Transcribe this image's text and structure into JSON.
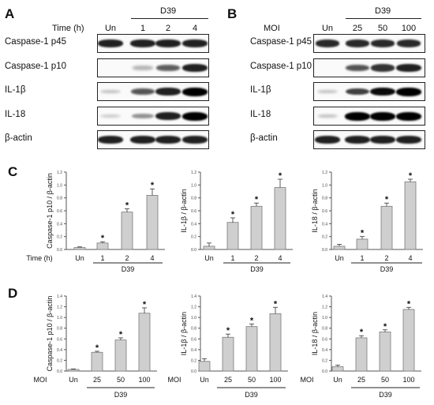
{
  "panels": {
    "A": {
      "letter": "A",
      "header_label": "Time (h)",
      "group_label": "D39",
      "conditions": [
        "Un",
        "1",
        "2",
        "4"
      ],
      "rows": [
        {
          "label": "Caspase-1 p45",
          "intensity": [
            0.85,
            0.85,
            0.85,
            0.85
          ]
        },
        {
          "label": "Caspase-1 p10",
          "intensity": [
            0.0,
            0.15,
            0.55,
            0.85
          ]
        },
        {
          "label": "IL-1β",
          "intensity": [
            0.1,
            0.6,
            0.85,
            1.0
          ]
        },
        {
          "label": "IL-18",
          "intensity": [
            0.05,
            0.3,
            0.85,
            1.0
          ]
        },
        {
          "label": "β-actin",
          "intensity": [
            0.85,
            0.85,
            0.85,
            0.85
          ]
        }
      ]
    },
    "B": {
      "letter": "B",
      "header_label": "MOI",
      "group_label": "D39",
      "conditions": [
        "Un",
        "25",
        "50",
        "100"
      ],
      "rows": [
        {
          "label": "Caspase-1 p45",
          "intensity": [
            0.8,
            0.8,
            0.8,
            0.8
          ]
        },
        {
          "label": "Caspase-1 p10",
          "intensity": [
            0.0,
            0.6,
            0.75,
            0.85
          ]
        },
        {
          "label": "IL-1β",
          "intensity": [
            0.1,
            0.7,
            0.95,
            1.0
          ]
        },
        {
          "label": "IL-18",
          "intensity": [
            0.1,
            1.0,
            1.0,
            1.0
          ]
        },
        {
          "label": "β-actin",
          "intensity": [
            0.85,
            0.85,
            0.85,
            0.85
          ]
        }
      ]
    }
  },
  "chart_data": [
    {
      "panel": "C",
      "type": "bar",
      "xtitle": "Time (h)",
      "group_label": "D39",
      "categories": [
        "Un",
        "1",
        "2",
        "4"
      ],
      "values": [
        0.03,
        0.1,
        0.58,
        0.84
      ],
      "errors": [
        0.01,
        0.02,
        0.05,
        0.1
      ],
      "significant": [
        false,
        true,
        true,
        true
      ],
      "ylabel": "Caspase-1 p10 / β-actin",
      "ylim": [
        0,
        1.2
      ],
      "yticks": [
        "0.0",
        "0.2",
        "0.4",
        "0.6",
        "0.8",
        "1.0",
        "1.2"
      ]
    },
    {
      "panel": "C",
      "type": "bar",
      "xtitle": "",
      "group_label": "D39",
      "categories": [
        "Un",
        "1",
        "2",
        "4"
      ],
      "values": [
        0.05,
        0.42,
        0.67,
        0.96
      ],
      "errors": [
        0.05,
        0.07,
        0.05,
        0.13
      ],
      "significant": [
        false,
        true,
        true,
        true
      ],
      "ylabel": "IL-1β / β-actin",
      "ylim": [
        0,
        1.2
      ],
      "yticks": [
        "0.0",
        "0.2",
        "0.4",
        "0.6",
        "0.8",
        "1.0",
        "1.2"
      ]
    },
    {
      "panel": "C",
      "type": "bar",
      "xtitle": "",
      "group_label": "D39",
      "categories": [
        "Un",
        "1",
        "2",
        "4"
      ],
      "values": [
        0.05,
        0.16,
        0.67,
        1.05
      ],
      "errors": [
        0.03,
        0.04,
        0.05,
        0.04
      ],
      "significant": [
        false,
        true,
        true,
        true
      ],
      "ylabel": "IL-18 / β-actin",
      "ylim": [
        0,
        1.2
      ],
      "yticks": [
        "0.0",
        "0.2",
        "0.4",
        "0.6",
        "0.8",
        "1.0",
        "1.2"
      ]
    },
    {
      "panel": "D",
      "type": "bar",
      "xtitle": "MOI",
      "group_label": "D39",
      "categories": [
        "Un",
        "25",
        "50",
        "100"
      ],
      "values": [
        0.03,
        0.35,
        0.58,
        1.08
      ],
      "errors": [
        0.01,
        0.02,
        0.04,
        0.1
      ],
      "significant": [
        false,
        true,
        true,
        true
      ],
      "ylabel": "Caspase-1 p10 / β-actin",
      "ylim": [
        0,
        1.4
      ],
      "yticks": [
        "0.0",
        "0.2",
        "0.4",
        "0.6",
        "0.8",
        "1.0",
        "1.2",
        "1.4"
      ]
    },
    {
      "panel": "D",
      "type": "bar",
      "xtitle": "MOI",
      "group_label": "D39",
      "categories": [
        "Un",
        "25",
        "50",
        "100"
      ],
      "values": [
        0.18,
        0.63,
        0.83,
        1.07
      ],
      "errors": [
        0.05,
        0.06,
        0.05,
        0.12
      ],
      "significant": [
        false,
        true,
        true,
        true
      ],
      "ylabel": "IL-1β / β-actin",
      "ylim": [
        0,
        1.4
      ],
      "yticks": [
        "0.0",
        "0.2",
        "0.4",
        "0.6",
        "0.8",
        "1.0",
        "1.2",
        "1.4"
      ]
    },
    {
      "panel": "D",
      "type": "bar",
      "xtitle": "MOI",
      "group_label": "D39",
      "categories": [
        "Un",
        "25",
        "50",
        "100"
      ],
      "values": [
        0.08,
        0.62,
        0.73,
        1.15
      ],
      "errors": [
        0.03,
        0.04,
        0.04,
        0.04
      ],
      "significant": [
        false,
        true,
        true,
        true
      ],
      "ylabel": "IL-18 / β-actin",
      "ylim": [
        0,
        1.4
      ],
      "yticks": [
        "0.0",
        "0.2",
        "0.4",
        "0.6",
        "0.8",
        "1.0",
        "1.2",
        "1.4"
      ]
    }
  ],
  "panel_letters": {
    "C": "C",
    "D": "D"
  },
  "significance_mark": "*",
  "colors": {
    "bar_fill": "#cfcfcf",
    "bar_stroke": "#7a7a7a",
    "axis": "#555555",
    "band": "#000000"
  }
}
